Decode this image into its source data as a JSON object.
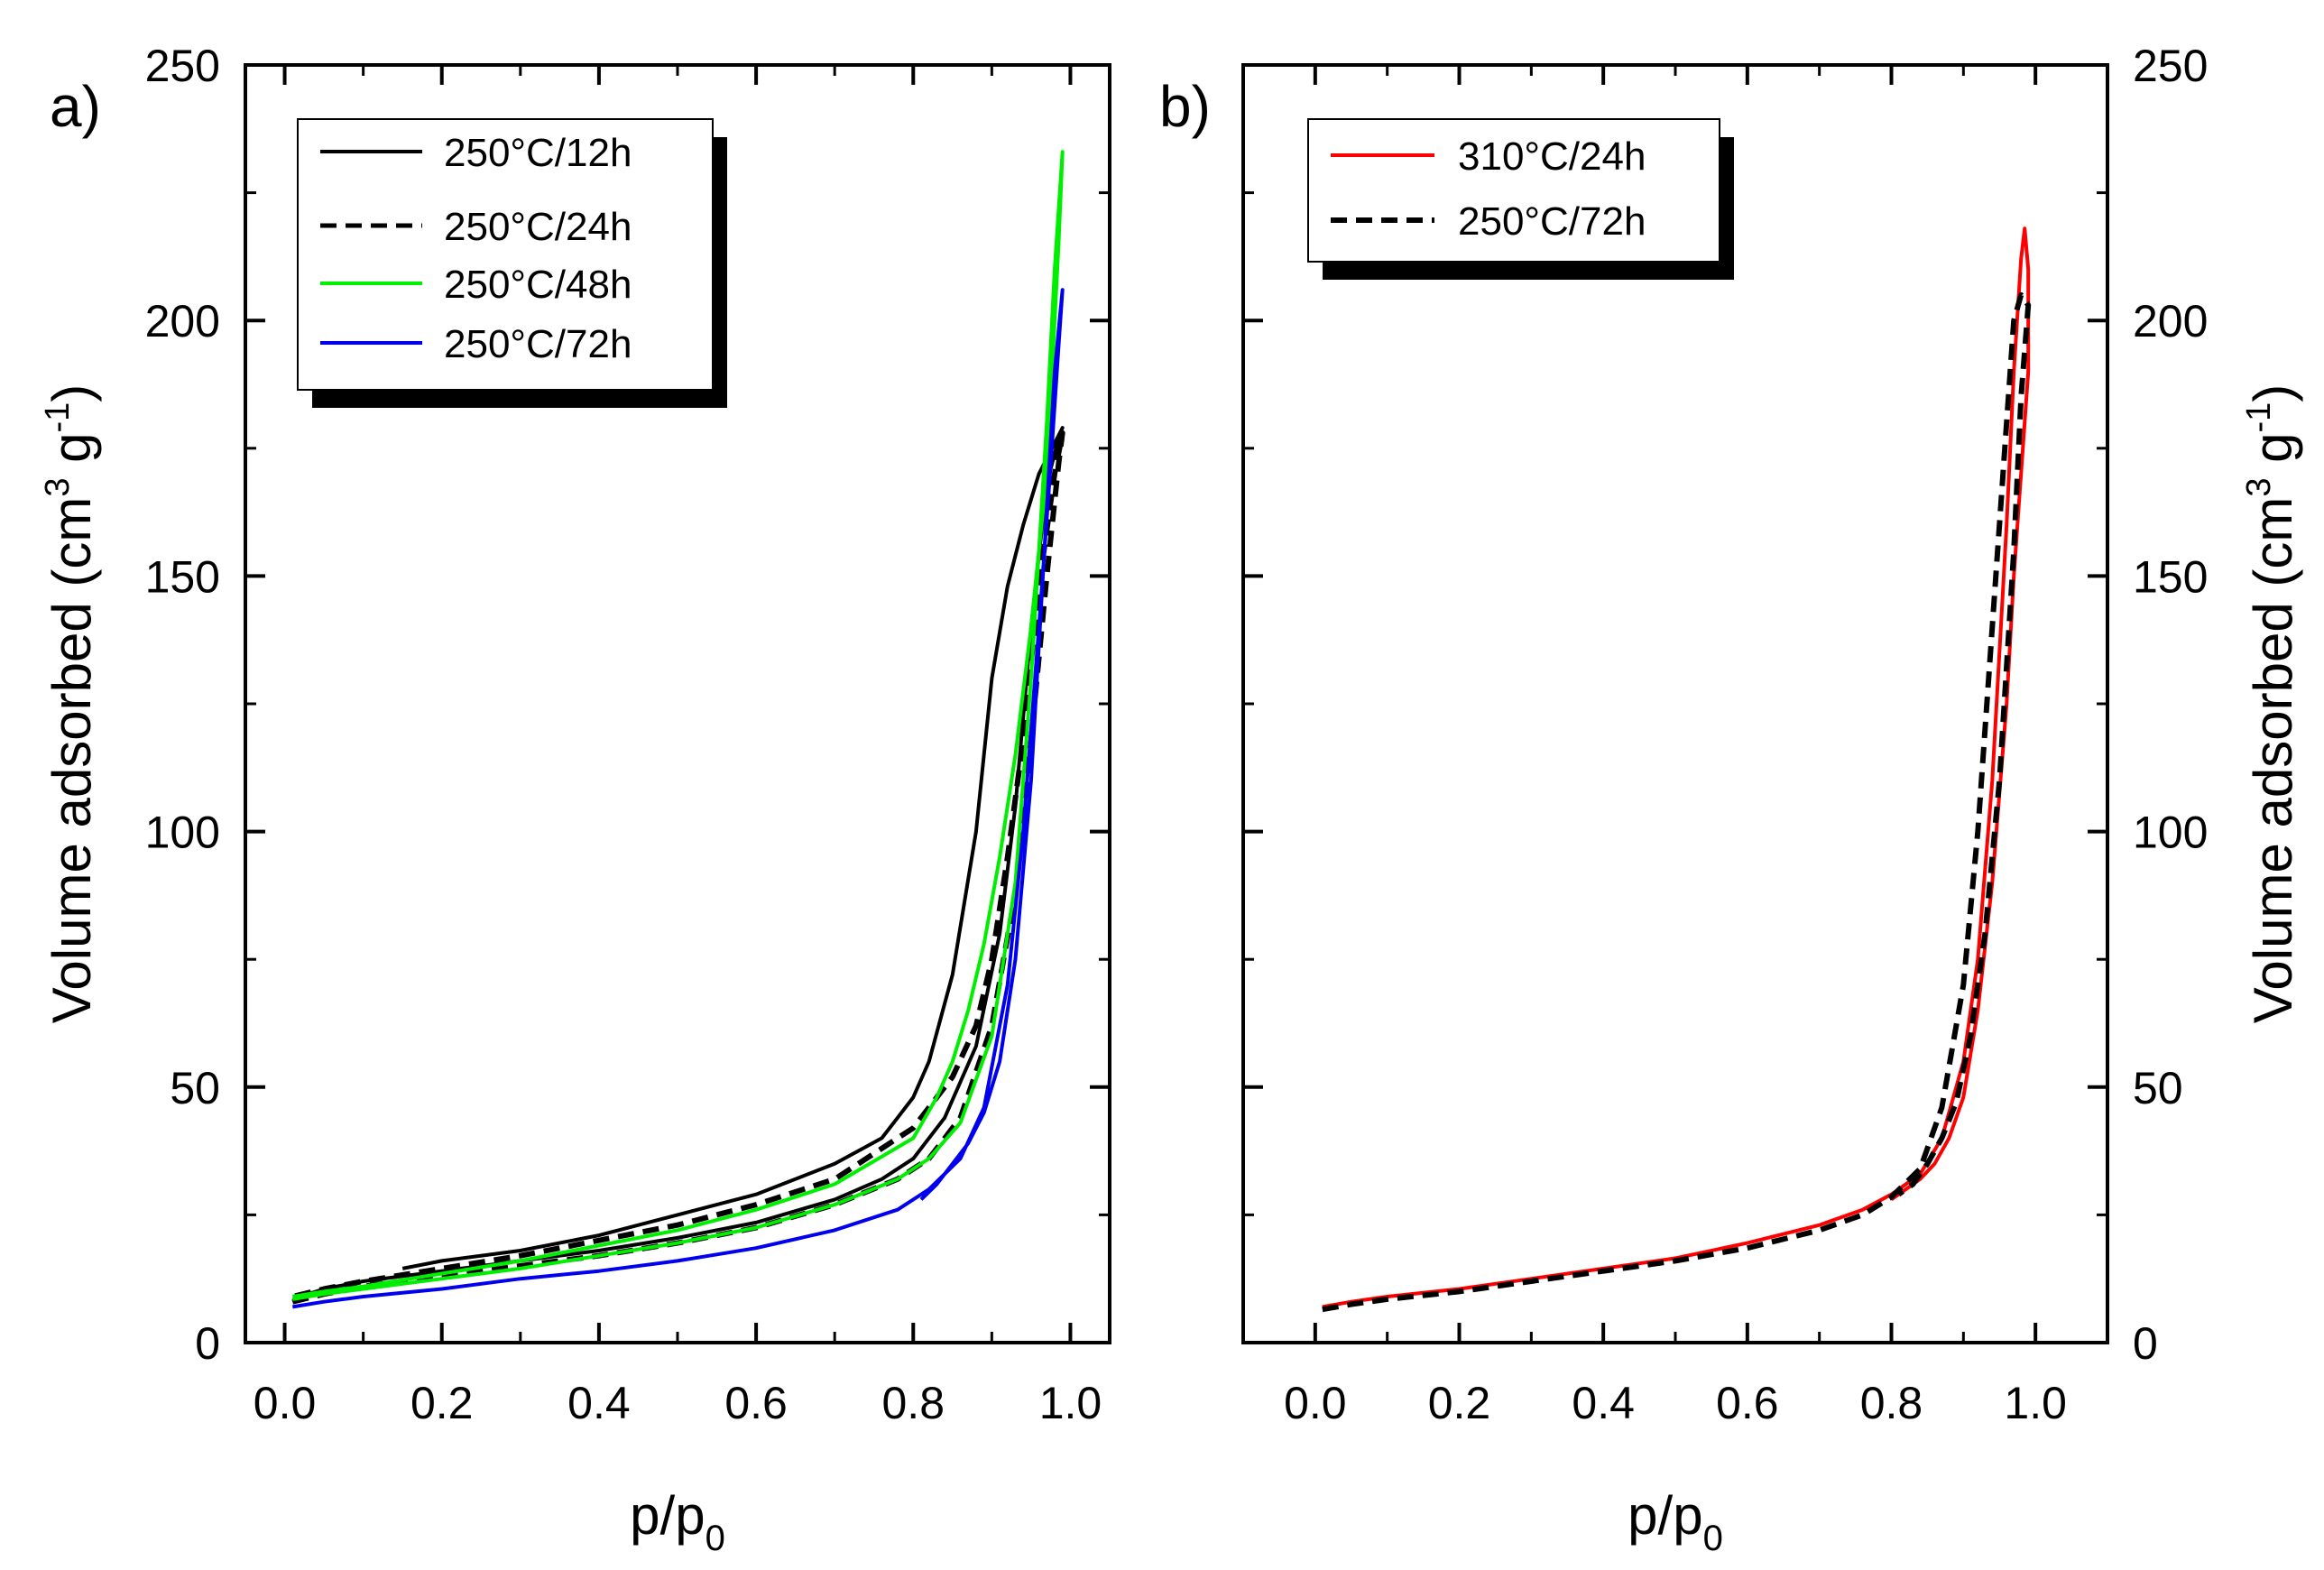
{
  "chart_data": [
    {
      "type": "line",
      "panel_label": "a)",
      "title": "",
      "xlabel": "p/p",
      "xlabel_sub": "0",
      "ylabel": "Volume adsorbed (cm",
      "ylabel_sup1": "3",
      "ylabel_mid": " g",
      "ylabel_sup2": "-1",
      "ylabel_end": ")",
      "xlim": [
        -0.05,
        1.05
      ],
      "ylim": [
        0,
        250
      ],
      "x_ticks": [
        0.0,
        0.2,
        0.4,
        0.6,
        0.8,
        1.0
      ],
      "x_tick_labels": [
        "0.0",
        "0.2",
        "0.4",
        "0.6",
        "0.8",
        "1.0"
      ],
      "y_ticks": [
        0,
        50,
        100,
        150,
        200,
        250
      ],
      "y_tick_labels": [
        "0",
        "50",
        "100",
        "150",
        "200",
        "250"
      ],
      "y_axis_side": "left",
      "legend_position": "top-left",
      "series": [
        {
          "name": "250°C/12h",
          "color": "#000000",
          "dash": "solid",
          "x": [
            0.01,
            0.03,
            0.05,
            0.1,
            0.2,
            0.3,
            0.4,
            0.5,
            0.6,
            0.7,
            0.76,
            0.8,
            0.84,
            0.88,
            0.91,
            0.93,
            0.95,
            0.97,
            0.985,
            0.99,
            0.99,
            0.98,
            0.96,
            0.94,
            0.92,
            0.9,
            0.88,
            0.85,
            0.82,
            0.8,
            0.78,
            0.76,
            0.7,
            0.6,
            0.5,
            0.4,
            0.3,
            0.2,
            0.15
          ],
          "y": [
            8,
            9.5,
            10.5,
            12,
            14,
            16,
            18,
            20.5,
            23.5,
            28,
            32,
            36,
            44,
            58,
            80,
            105,
            140,
            168,
            177,
            179,
            179,
            176,
            170,
            160,
            148,
            130,
            100,
            72,
            55,
            48,
            44,
            40,
            35,
            29,
            25,
            21,
            18,
            16,
            14.5
          ]
        },
        {
          "name": "250°C/24h",
          "color": "#000000",
          "dash": "dashed",
          "x": [
            0.01,
            0.05,
            0.1,
            0.2,
            0.3,
            0.4,
            0.5,
            0.6,
            0.7,
            0.78,
            0.82,
            0.86,
            0.9,
            0.93,
            0.95,
            0.97,
            0.985,
            0.99,
            0.99,
            0.98,
            0.96,
            0.94,
            0.92,
            0.9,
            0.88,
            0.85,
            0.82,
            0.8,
            0.7,
            0.6,
            0.5,
            0.4,
            0.3,
            0.2,
            0.1,
            0.05,
            0.01
          ],
          "y": [
            8,
            9.5,
            11,
            13,
            15,
            17,
            19.5,
            22.5,
            27,
            32,
            36,
            44,
            62,
            88,
            118,
            150,
            172,
            178,
            178,
            170,
            148,
            118,
            95,
            75,
            62,
            52,
            46,
            42,
            32,
            27,
            23,
            20,
            17,
            14.5,
            12,
            10.5,
            9
          ]
        },
        {
          "name": "250°C/48h",
          "color": "#00ee00",
          "dash": "solid",
          "x": [
            0.01,
            0.05,
            0.1,
            0.2,
            0.3,
            0.4,
            0.5,
            0.6,
            0.7,
            0.78,
            0.82,
            0.86,
            0.9,
            0.93,
            0.95,
            0.97,
            0.98,
            0.99,
            0.99,
            0.985,
            0.97,
            0.95,
            0.93,
            0.91,
            0.89,
            0.87,
            0.85,
            0.83,
            0.8,
            0.7,
            0.6,
            0.5,
            0.4,
            0.3,
            0.2,
            0.1,
            0.05,
            0.01
          ],
          "y": [
            8.5,
            9.5,
            10.5,
            12.5,
            14.5,
            17,
            19.5,
            22.5,
            27,
            32,
            36,
            43,
            60,
            90,
            130,
            180,
            210,
            233,
            233,
            215,
            170,
            140,
            115,
            95,
            78,
            65,
            55,
            48,
            40,
            31,
            26,
            22,
            19,
            16,
            13.5,
            11,
            10,
            9
          ]
        },
        {
          "name": "250°C/72h",
          "color": "#0000ee",
          "dash": "solid",
          "x": [
            0.01,
            0.05,
            0.1,
            0.2,
            0.3,
            0.4,
            0.5,
            0.6,
            0.7,
            0.78,
            0.82,
            0.86,
            0.89,
            0.92,
            0.94,
            0.96,
            0.975,
            0.985,
            0.99,
            0.99,
            0.98,
            0.965,
            0.95,
            0.93,
            0.91,
            0.89,
            0.87,
            0.85,
            0.83,
            0.81
          ],
          "y": [
            7,
            8,
            9,
            10.5,
            12.5,
            14,
            16,
            18.5,
            22,
            26,
            30,
            36,
            46,
            70,
            100,
            140,
            172,
            195,
            206,
            206,
            190,
            150,
            110,
            75,
            55,
            45,
            39,
            35,
            31,
            28
          ]
        }
      ]
    },
    {
      "type": "line",
      "panel_label": "b)",
      "title": "",
      "xlabel": "p/p",
      "xlabel_sub": "0",
      "ylabel": "Volume adsorbed (cm",
      "ylabel_sup1": "3",
      "ylabel_mid": " g",
      "ylabel_sup2": "-1",
      "ylabel_end": ")",
      "xlim": [
        -0.1,
        1.1
      ],
      "ylim": [
        0,
        250
      ],
      "x_ticks": [
        0.0,
        0.2,
        0.4,
        0.6,
        0.8,
        1.0
      ],
      "x_tick_labels": [
        "0.0",
        "0.2",
        "0.4",
        "0.6",
        "0.8",
        "1.0"
      ],
      "y_ticks": [
        0,
        50,
        100,
        150,
        200,
        250
      ],
      "y_tick_labels": [
        "0",
        "50",
        "100",
        "150",
        "200",
        "250"
      ],
      "y_axis_side": "right",
      "legend_position": "top-left",
      "series": [
        {
          "name": "310°C/24h",
          "color": "#ff0000",
          "dash": "solid",
          "x": [
            0.01,
            0.05,
            0.1,
            0.2,
            0.3,
            0.4,
            0.5,
            0.6,
            0.7,
            0.76,
            0.8,
            0.84,
            0.87,
            0.9,
            0.92,
            0.94,
            0.96,
            0.97,
            0.98,
            0.985,
            0.99,
            0.99,
            0.98,
            0.97,
            0.96,
            0.94,
            0.92,
            0.9,
            0.88,
            0.86,
            0.84,
            0.82,
            0.8
          ],
          "y": [
            7,
            8,
            9,
            10.5,
            12.5,
            14.5,
            16.5,
            19.5,
            23,
            26,
            29,
            33,
            40,
            55,
            75,
            110,
            160,
            190,
            212,
            218,
            210,
            190,
            170,
            150,
            125,
            90,
            65,
            48,
            40,
            35,
            32,
            30,
            28
          ]
        },
        {
          "name": "250°C/72h",
          "color": "#000000",
          "dash": "dashed",
          "x": [
            0.01,
            0.05,
            0.1,
            0.2,
            0.3,
            0.4,
            0.5,
            0.6,
            0.7,
            0.76,
            0.8,
            0.84,
            0.87,
            0.9,
            0.92,
            0.94,
            0.96,
            0.97,
            0.98,
            0.99,
            0.99,
            0.98,
            0.97,
            0.95,
            0.93,
            0.91,
            0.89,
            0.87,
            0.85,
            0.83,
            0.81
          ],
          "y": [
            6.5,
            7.5,
            8.5,
            10,
            12,
            14,
            16,
            18.5,
            22,
            25,
            28.5,
            34,
            46,
            70,
            100,
            140,
            180,
            200,
            205,
            203,
            203,
            185,
            155,
            110,
            80,
            60,
            47,
            40,
            35,
            31,
            29
          ]
        }
      ]
    }
  ]
}
